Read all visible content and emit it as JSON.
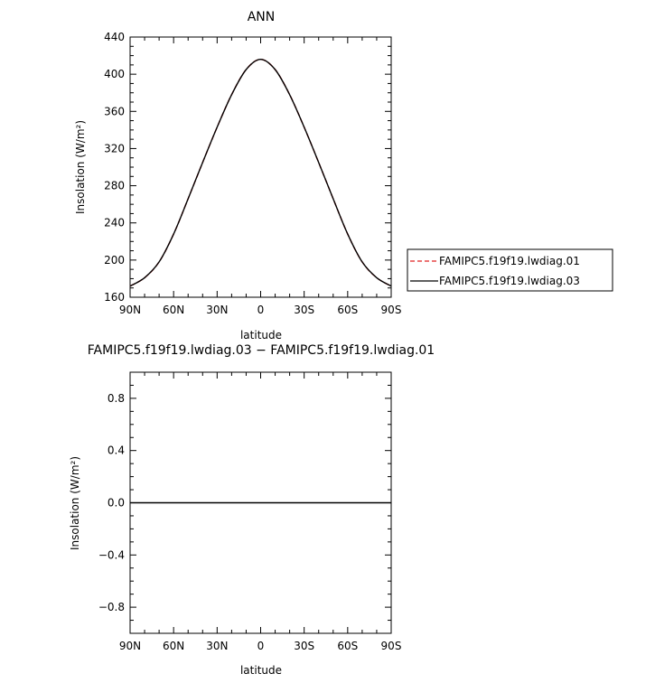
{
  "chart_data": [
    {
      "type": "line",
      "title": "ANN",
      "xlabel": "latitude",
      "ylabel": "Insolation (W/m²)",
      "xlim": [
        90,
        -90
      ],
      "ylim": [
        160,
        440
      ],
      "x_ticks": [
        {
          "value": 90,
          "label": "90N"
        },
        {
          "value": 60,
          "label": "60N"
        },
        {
          "value": 30,
          "label": "30N"
        },
        {
          "value": 0,
          "label": "0"
        },
        {
          "value": -30,
          "label": "30S"
        },
        {
          "value": -60,
          "label": "60S"
        },
        {
          "value": -90,
          "label": "90S"
        }
      ],
      "y_ticks": [
        {
          "value": 160,
          "label": "160"
        },
        {
          "value": 200,
          "label": "200"
        },
        {
          "value": 240,
          "label": "240"
        },
        {
          "value": 280,
          "label": "280"
        },
        {
          "value": 320,
          "label": "320"
        },
        {
          "value": 360,
          "label": "360"
        },
        {
          "value": 400,
          "label": "400"
        },
        {
          "value": 440,
          "label": "440"
        }
      ],
      "x": [
        90,
        80,
        70,
        60,
        50,
        40,
        30,
        20,
        10,
        0,
        -10,
        -20,
        -30,
        -40,
        -50,
        -60,
        -70,
        -80,
        -90
      ],
      "series": [
        {
          "name": "FAMIPC5.f19f19.lwdiag.01",
          "color": "#e02020",
          "style": "dashed",
          "values": [
            172,
            181,
            198,
            228,
            266,
            305,
            343,
            378,
            405,
            416,
            405,
            378,
            343,
            305,
            266,
            228,
            198,
            181,
            172
          ]
        },
        {
          "name": "FAMIPC5.f19f19.lwdiag.03",
          "color": "#000000",
          "style": "solid",
          "values": [
            172,
            181,
            198,
            228,
            266,
            305,
            343,
            378,
            405,
            416,
            405,
            378,
            343,
            305,
            266,
            228,
            198,
            181,
            172
          ]
        }
      ],
      "legend": {
        "placement": "right",
        "entries": [
          "FAMIPC5.f19f19.lwdiag.01",
          "FAMIPC5.f19f19.lwdiag.03"
        ]
      }
    },
    {
      "type": "line",
      "title": "FAMIPC5.f19f19.lwdiag.03 − FAMIPC5.f19f19.lwdiag.01",
      "xlabel": "latitude",
      "ylabel": "Insolation (W/m²)",
      "xlim": [
        90,
        -90
      ],
      "ylim": [
        -1,
        1
      ],
      "x_ticks": [
        {
          "value": 90,
          "label": "90N"
        },
        {
          "value": 60,
          "label": "60N"
        },
        {
          "value": 30,
          "label": "30N"
        },
        {
          "value": 0,
          "label": "0"
        },
        {
          "value": -30,
          "label": "30S"
        },
        {
          "value": -60,
          "label": "60S"
        },
        {
          "value": -90,
          "label": "90S"
        }
      ],
      "y_ticks": [
        {
          "value": 0.8,
          "label": "0.8"
        },
        {
          "value": 0.4,
          "label": "0.4"
        },
        {
          "value": 0.0,
          "label": "0.0"
        },
        {
          "value": -0.4,
          "label": "−0.4"
        },
        {
          "value": -0.8,
          "label": "−0.8"
        }
      ],
      "x": [
        90,
        -90
      ],
      "series": [
        {
          "color": "#000000",
          "style": "solid",
          "values": [
            0,
            0
          ]
        }
      ]
    }
  ]
}
